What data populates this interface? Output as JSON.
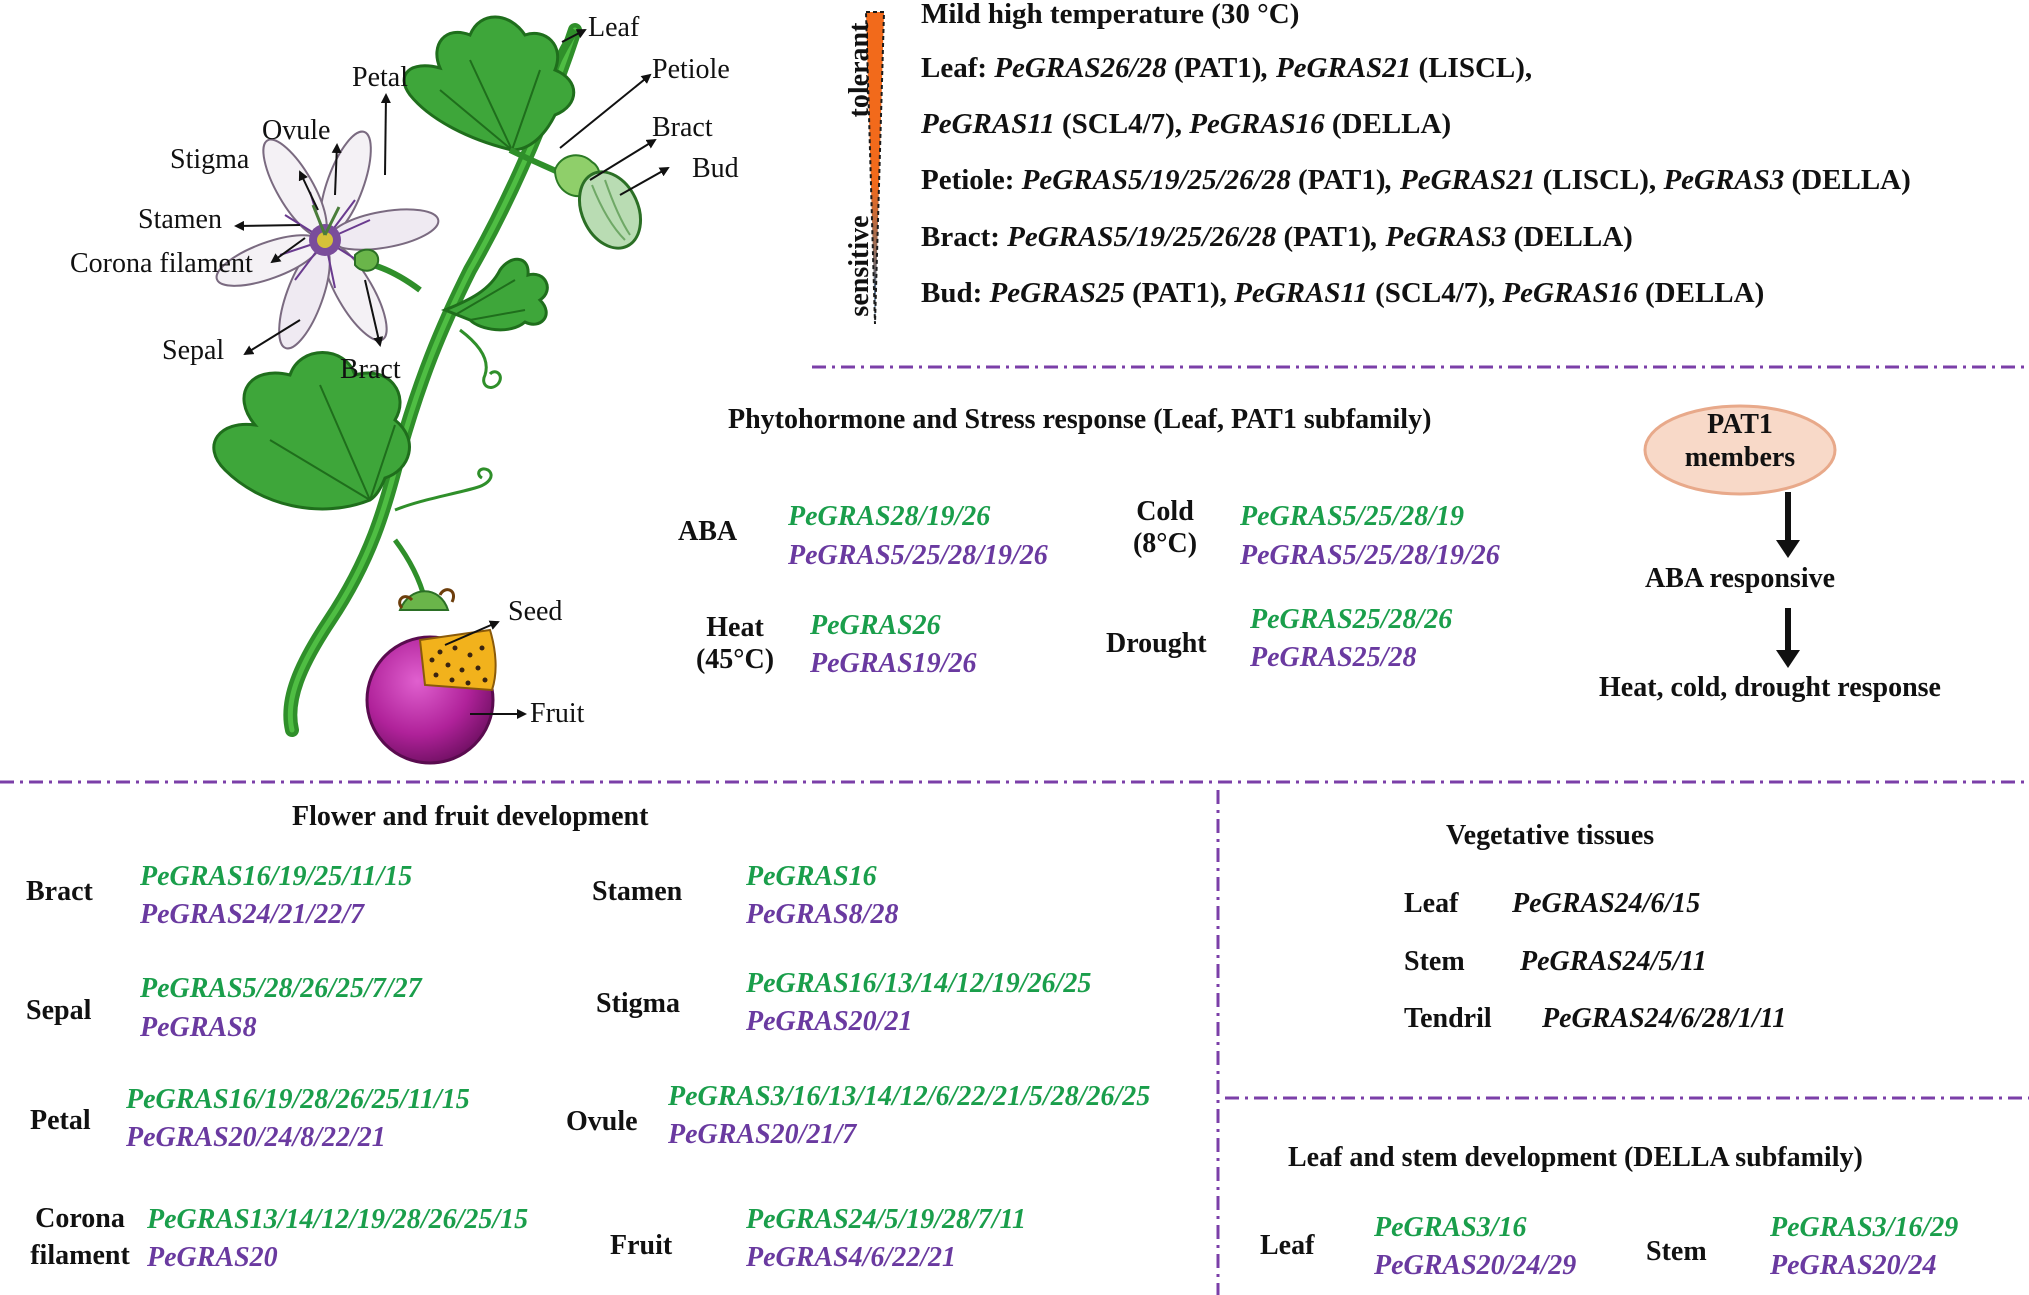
{
  "plant": {
    "labels": {
      "leaf": "Leaf",
      "petiole": "Petiole",
      "bract_top": "Bract",
      "bud": "Bud",
      "petal": "Petal",
      "ovule": "Ovule",
      "stigma": "Stigma",
      "stamen": "Stamen",
      "corona": "Corona filament",
      "sepal": "Sepal",
      "bract_flower": "Bract",
      "seed": "Seed",
      "fruit": "Fruit"
    },
    "colors": {
      "leaf": "#3ea63a",
      "stem": "#2f8f2a",
      "fruit": "#b0229a",
      "pulp": "#f2b21c",
      "bud": "#b9dcb3"
    }
  },
  "temperature": {
    "title": "Mild high temperature (30 °C)",
    "tolerant": "tolerant",
    "sensitive": "sensitive",
    "gradient_colors": [
      "#f26a1b",
      "#1f6fb2"
    ],
    "rows": [
      {
        "tissue": "Leaf:",
        "p1": "PeGRAS26/28",
        "f1": " (PAT1)",
        "p2": "PeGRAS21",
        "f2": " (LISCL),",
        "p3": "",
        "f3": ""
      },
      {
        "tissue": "",
        "p1": "PeGRAS11",
        "f1": " (SCL4/7), ",
        "p2": "PeGRAS16",
        "f2": " (DELLA)",
        "p3": "",
        "f3": ""
      },
      {
        "tissue": "Petiole:",
        "p1": "PeGRAS5/19/25/26/28",
        "f1": " (PAT1)",
        "p2": "PeGRAS21",
        "f2": " (LISCL), ",
        "p3": "PeGRAS3",
        "f3": " (DELLA)"
      },
      {
        "tissue": "Bract:",
        "p1": "PeGRAS5/19/25/26/28",
        "f1": " (PAT1)",
        "p2": "PeGRAS3",
        "f2": " (DELLA)",
        "p3": "",
        "f3": ""
      },
      {
        "tissue": "Bud:",
        "p1": "PeGRAS25",
        "f1": " (PAT1), ",
        "p2": "PeGRAS11",
        "f2": " (SCL4/7), ",
        "p3": "PeGRAS16",
        "f3": " (DELLA)"
      }
    ]
  },
  "phytohormone": {
    "title": "Phytohormone and Stress response (Leaf, PAT1 subfamily)",
    "aba": {
      "label": "ABA",
      "up": "PeGRAS28/19/26",
      "down": "PeGRAS5/25/28/19/26"
    },
    "cold": {
      "label1": "Cold",
      "label2": "(8°C)",
      "up": "PeGRAS5/25/28/19",
      "down": "PeGRAS5/25/28/19/26"
    },
    "heat": {
      "label1": "Heat",
      "label2": "(45°C)",
      "up": "PeGRAS26",
      "down": "PeGRAS19/26"
    },
    "drought": {
      "label": "Drought",
      "up": "PeGRAS25/28/26",
      "down": "PeGRAS25/28"
    },
    "pathway": {
      "node1_line1": "PAT1",
      "node1_line2": "members",
      "node2": "ABA responsive",
      "node3": "Heat, cold, drought response"
    },
    "node_fill": "#f8d9c8",
    "node_stroke": "#e8a98a"
  },
  "flower": {
    "title": "Flower and fruit development",
    "left": [
      {
        "label1": "Bract",
        "label2": "",
        "up": "PeGRAS16/19/25/11/15",
        "down": "PeGRAS24/21/22/7"
      },
      {
        "label1": "Sepal",
        "label2": "",
        "up": "PeGRAS5/28/26/25/7/27",
        "down": "PeGRAS8"
      },
      {
        "label1": "Petal",
        "label2": "",
        "up": "PeGRAS16/19/28/26/25/11/15",
        "down": "PeGRAS20/24/8/22/21"
      },
      {
        "label1": "Corona",
        "label2": "filament",
        "up": "PeGRAS13/14/12/19/28/26/25/15",
        "down": "PeGRAS20"
      }
    ],
    "right": [
      {
        "label": "Stamen",
        "up": "PeGRAS16",
        "down": "PeGRAS8/28"
      },
      {
        "label": "Stigma",
        "up": "PeGRAS16/13/14/12/19/26/25",
        "down": "PeGRAS20/21"
      },
      {
        "label": "Ovule",
        "up": "PeGRAS3/16/13/14/12/6/22/21/5/28/26/25",
        "down": "PeGRAS20/21/7"
      },
      {
        "label": "Fruit",
        "up": "PeGRAS24/5/19/28/7/11",
        "down": "PeGRAS4/6/22/21"
      }
    ]
  },
  "vegetative": {
    "title": "Vegetative tissues",
    "rows": [
      {
        "label": "Leaf",
        "genes": "PeGRAS24/6/15"
      },
      {
        "label": "Stem",
        "genes": "PeGRAS24/5/11"
      },
      {
        "label": "Tendril",
        "genes": "PeGRAS24/6/28/1/11"
      }
    ]
  },
  "della": {
    "title": "Leaf and stem development (DELLA subfamily)",
    "leaf": {
      "label": "Leaf",
      "up": "PeGRAS3/16",
      "down": "PeGRAS20/24/29"
    },
    "stem": {
      "label": "Stem",
      "up": "PeGRAS3/16/29",
      "down": "PeGRAS20/24"
    }
  },
  "colors": {
    "up": "#1a9e4b",
    "down": "#6a3aa0",
    "divider": "#7b3fa8"
  }
}
